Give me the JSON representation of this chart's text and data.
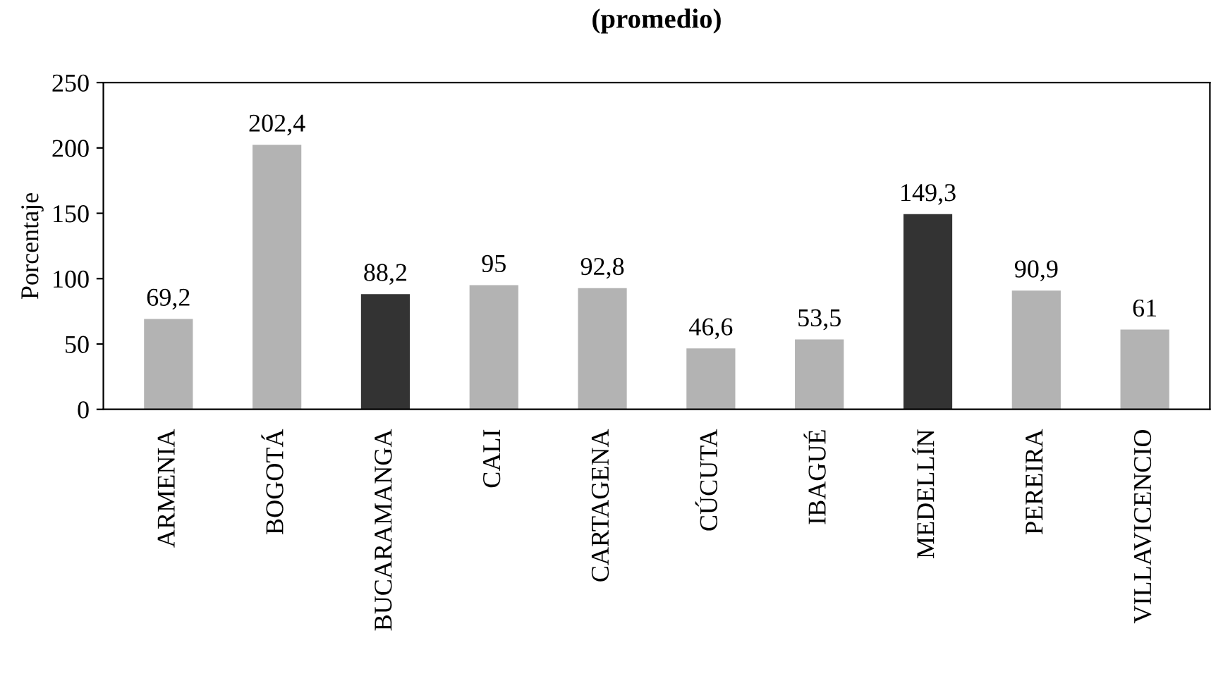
{
  "chart_data": {
    "type": "bar",
    "title": "(promedio)",
    "ylabel": "Porcentaje",
    "categories": [
      "ARMENIA",
      "BOGOTÁ",
      "BUCARAMANGA",
      "CALI",
      "CARTAGENA",
      "CÚCUTA",
      "IBAGUÉ",
      "MEDELLÍN",
      "PEREIRA",
      "VILLAVICENCIO"
    ],
    "values": [
      69.2,
      202.4,
      88.2,
      95,
      92.8,
      46.6,
      53.5,
      149.3,
      90.9,
      61
    ],
    "value_labels": [
      "69,2",
      "202,4",
      "88,2",
      "95",
      "92,8",
      "46,6",
      "53,5",
      "149,3",
      "90,9",
      "61"
    ],
    "colors": [
      "#b3b3b3",
      "#b3b3b3",
      "#333333",
      "#b3b3b3",
      "#b3b3b3",
      "#b3b3b3",
      "#b3b3b3",
      "#333333",
      "#b3b3b3",
      "#b3b3b3"
    ],
    "ylim": [
      0,
      250
    ],
    "yticks": [
      0,
      50,
      100,
      150,
      200,
      250
    ],
    "grid": false,
    "legend": false
  }
}
